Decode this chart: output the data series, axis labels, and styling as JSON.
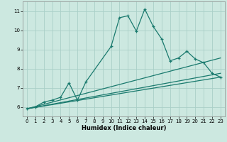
{
  "xlabel": "Humidex (Indice chaleur)",
  "bg_color": "#cce8e0",
  "line_color": "#1a7a6e",
  "grid_color": "#aacfc8",
  "xlim": [
    -0.5,
    23.5
  ],
  "ylim": [
    5.5,
    11.5
  ],
  "yticks": [
    6,
    7,
    8,
    9,
    10,
    11
  ],
  "xticks": [
    0,
    1,
    2,
    3,
    4,
    5,
    6,
    7,
    8,
    9,
    10,
    11,
    12,
    13,
    14,
    15,
    16,
    17,
    18,
    19,
    20,
    21,
    22,
    23
  ],
  "series": [
    {
      "x": [
        0,
        1,
        2,
        3,
        4,
        5,
        6,
        7,
        10,
        11,
        12,
        13,
        14,
        15,
        16,
        17,
        18,
        19,
        20,
        21,
        22,
        23
      ],
      "y": [
        5.9,
        6.0,
        6.25,
        6.35,
        6.5,
        7.25,
        6.35,
        7.3,
        9.15,
        10.65,
        10.75,
        9.95,
        11.1,
        10.2,
        9.55,
        8.4,
        8.55,
        8.9,
        8.5,
        8.3,
        7.75,
        7.55
      ]
    },
    {
      "x": [
        0,
        23
      ],
      "y": [
        5.9,
        7.55
      ]
    },
    {
      "x": [
        0,
        23
      ],
      "y": [
        5.9,
        7.75
      ]
    },
    {
      "x": [
        0,
        23
      ],
      "y": [
        5.9,
        8.55
      ]
    }
  ]
}
